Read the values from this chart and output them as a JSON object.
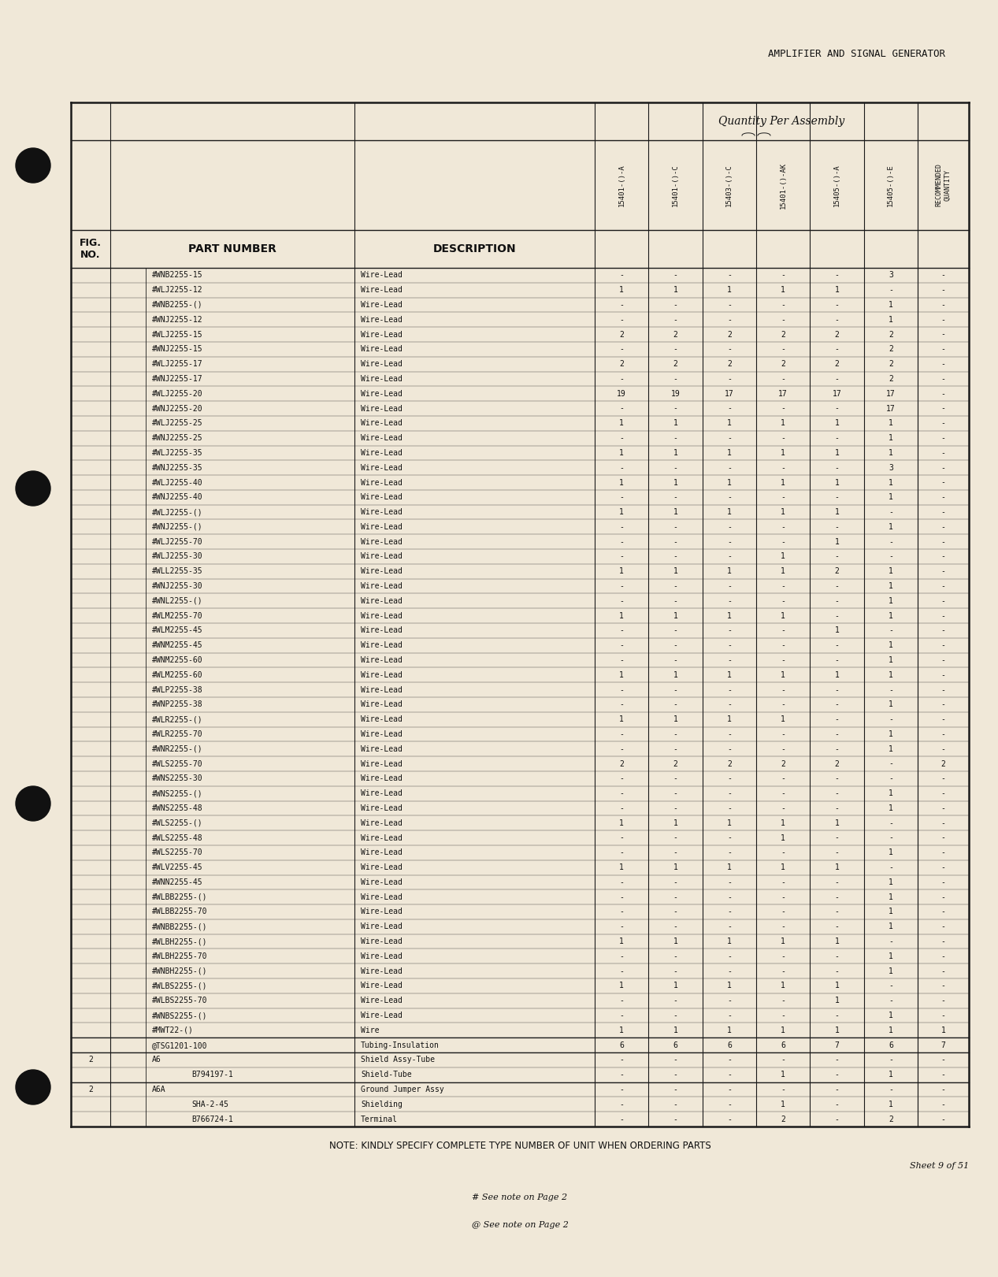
{
  "page_title": "AMPLIFIER AND SIGNAL GENERATOR",
  "qty_header": "Quantity Per Assembly",
  "col_labels": [
    "15401-()-A",
    "15401-()-C",
    "15403-()-C",
    "15401-()-AK",
    "15405-()-A",
    "15405-()-E"
  ],
  "rows": [
    {
      "fig": "",
      "pn": "#WNB2255-15",
      "desc": "Wire-Lead",
      "indent_pn": 0,
      "indent_desc": 0,
      "q": [
        "-",
        "-",
        "-",
        "-",
        "-",
        "3"
      ],
      "rec": "-"
    },
    {
      "fig": "",
      "pn": "#WLJ2255-12",
      "desc": "Wire-Lead",
      "indent_pn": 0,
      "indent_desc": 0,
      "q": [
        "1",
        "1",
        "1",
        "1",
        "1",
        "-"
      ],
      "rec": "-"
    },
    {
      "fig": "",
      "pn": "#WNB2255-()",
      "desc": "Wire-Lead",
      "indent_pn": 0,
      "indent_desc": 0,
      "q": [
        "-",
        "-",
        "-",
        "-",
        "-",
        "1"
      ],
      "rec": "-"
    },
    {
      "fig": "",
      "pn": "#WNJ2255-12",
      "desc": "Wire-Lead",
      "indent_pn": 0,
      "indent_desc": 0,
      "q": [
        "-",
        "-",
        "-",
        "-",
        "-",
        "1"
      ],
      "rec": "-"
    },
    {
      "fig": "",
      "pn": "#WLJ2255-15",
      "desc": "Wire-Lead",
      "indent_pn": 0,
      "indent_desc": 0,
      "q": [
        "2",
        "2",
        "2",
        "2",
        "2",
        "2"
      ],
      "rec": "-"
    },
    {
      "fig": "",
      "pn": "#WNJ2255-15",
      "desc": "Wire-Lead",
      "indent_pn": 0,
      "indent_desc": 0,
      "q": [
        "-",
        "-",
        "-",
        "-",
        "-",
        "2"
      ],
      "rec": "-"
    },
    {
      "fig": "",
      "pn": "#WLJ2255-17",
      "desc": "Wire-Lead",
      "indent_pn": 0,
      "indent_desc": 0,
      "q": [
        "2",
        "2",
        "2",
        "2",
        "2",
        "2"
      ],
      "rec": "-"
    },
    {
      "fig": "",
      "pn": "#WNJ2255-17",
      "desc": "Wire-Lead",
      "indent_pn": 0,
      "indent_desc": 0,
      "q": [
        "-",
        "-",
        "-",
        "-",
        "-",
        "2"
      ],
      "rec": "-"
    },
    {
      "fig": "",
      "pn": "#WLJ2255-20",
      "desc": "Wire-Lead",
      "indent_pn": 0,
      "indent_desc": 0,
      "q": [
        "19",
        "19",
        "17",
        "17",
        "17",
        "17"
      ],
      "rec": "-"
    },
    {
      "fig": "",
      "pn": "#WNJ2255-20",
      "desc": "Wire-Lead",
      "indent_pn": 0,
      "indent_desc": 0,
      "q": [
        "-",
        "-",
        "-",
        "-",
        "-",
        "17"
      ],
      "rec": "-"
    },
    {
      "fig": "",
      "pn": "#WLJ2255-25",
      "desc": "Wire-Lead",
      "indent_pn": 0,
      "indent_desc": 0,
      "q": [
        "1",
        "1",
        "1",
        "1",
        "1",
        "1"
      ],
      "rec": "-"
    },
    {
      "fig": "",
      "pn": "#WNJ2255-25",
      "desc": "Wire-Lead",
      "indent_pn": 0,
      "indent_desc": 0,
      "q": [
        "-",
        "-",
        "-",
        "-",
        "-",
        "1"
      ],
      "rec": "-"
    },
    {
      "fig": "",
      "pn": "#WLJ2255-35",
      "desc": "Wire-Lead",
      "indent_pn": 0,
      "indent_desc": 0,
      "q": [
        "1",
        "1",
        "1",
        "1",
        "1",
        "1"
      ],
      "rec": "-"
    },
    {
      "fig": "",
      "pn": "#WNJ2255-35",
      "desc": "Wire-Lead",
      "indent_pn": 0,
      "indent_desc": 0,
      "q": [
        "-",
        "-",
        "-",
        "-",
        "-",
        "3"
      ],
      "rec": "-"
    },
    {
      "fig": "",
      "pn": "#WLJ2255-40",
      "desc": "Wire-Lead",
      "indent_pn": 0,
      "indent_desc": 0,
      "q": [
        "1",
        "1",
        "1",
        "1",
        "1",
        "1"
      ],
      "rec": "-"
    },
    {
      "fig": "",
      "pn": "#WNJ2255-40",
      "desc": "Wire-Lead",
      "indent_pn": 0,
      "indent_desc": 0,
      "q": [
        "-",
        "-",
        "-",
        "-",
        "-",
        "1"
      ],
      "rec": "-"
    },
    {
      "fig": "",
      "pn": "#WLJ2255-()",
      "desc": "Wire-Lead",
      "indent_pn": 0,
      "indent_desc": 0,
      "q": [
        "1",
        "1",
        "1",
        "1",
        "1",
        "-"
      ],
      "rec": "-"
    },
    {
      "fig": "",
      "pn": "#WNJ2255-()",
      "desc": "Wire-Lead",
      "indent_pn": 0,
      "indent_desc": 0,
      "q": [
        "-",
        "-",
        "-",
        "-",
        "-",
        "1"
      ],
      "rec": "-"
    },
    {
      "fig": "",
      "pn": "#WLJ2255-70",
      "desc": "Wire-Lead",
      "indent_pn": 0,
      "indent_desc": 0,
      "q": [
        "-",
        "-",
        "-",
        "-",
        "1",
        "-"
      ],
      "rec": "-"
    },
    {
      "fig": "",
      "pn": "#WLJ2255-30",
      "desc": "Wire-Lead",
      "indent_pn": 0,
      "indent_desc": 0,
      "q": [
        "-",
        "-",
        "-",
        "1",
        "-",
        "-"
      ],
      "rec": "-"
    },
    {
      "fig": "",
      "pn": "#WLL2255-35",
      "desc": "Wire-Lead",
      "indent_pn": 0,
      "indent_desc": 0,
      "q": [
        "1",
        "1",
        "1",
        "1",
        "2",
        "1"
      ],
      "rec": "-"
    },
    {
      "fig": "",
      "pn": "#WNJ2255-30",
      "desc": "Wire-Lead",
      "indent_pn": 0,
      "indent_desc": 0,
      "q": [
        "-",
        "-",
        "-",
        "-",
        "-",
        "1"
      ],
      "rec": "-"
    },
    {
      "fig": "",
      "pn": "#WNL2255-()",
      "desc": "Wire-Lead",
      "indent_pn": 0,
      "indent_desc": 0,
      "q": [
        "-",
        "-",
        "-",
        "-",
        "-",
        "1"
      ],
      "rec": "-"
    },
    {
      "fig": "",
      "pn": "#WLM2255-70",
      "desc": "Wire-Lead",
      "indent_pn": 0,
      "indent_desc": 0,
      "q": [
        "1",
        "1",
        "1",
        "1",
        "-",
        "1"
      ],
      "rec": "-"
    },
    {
      "fig": "",
      "pn": "#WLM2255-45",
      "desc": "Wire-Lead",
      "indent_pn": 0,
      "indent_desc": 0,
      "q": [
        "-",
        "-",
        "-",
        "-",
        "1",
        "-"
      ],
      "rec": "-"
    },
    {
      "fig": "",
      "pn": "#WNM2255-45",
      "desc": "Wire-Lead",
      "indent_pn": 0,
      "indent_desc": 0,
      "q": [
        "-",
        "-",
        "-",
        "-",
        "-",
        "1"
      ],
      "rec": "-"
    },
    {
      "fig": "",
      "pn": "#WNM2255-60",
      "desc": "Wire-Lead",
      "indent_pn": 0,
      "indent_desc": 0,
      "q": [
        "-",
        "-",
        "-",
        "-",
        "-",
        "1"
      ],
      "rec": "-"
    },
    {
      "fig": "",
      "pn": "#WLM2255-60",
      "desc": "Wire-Lead",
      "indent_pn": 0,
      "indent_desc": 0,
      "q": [
        "1",
        "1",
        "1",
        "1",
        "1",
        "1"
      ],
      "rec": "-"
    },
    {
      "fig": "",
      "pn": "#WLP2255-38",
      "desc": "Wire-Lead",
      "indent_pn": 0,
      "indent_desc": 0,
      "q": [
        "-",
        "-",
        "-",
        "-",
        "-",
        "-"
      ],
      "rec": "-"
    },
    {
      "fig": "",
      "pn": "#WNP2255-38",
      "desc": "Wire-Lead",
      "indent_pn": 0,
      "indent_desc": 0,
      "q": [
        "-",
        "-",
        "-",
        "-",
        "-",
        "1"
      ],
      "rec": "-"
    },
    {
      "fig": "",
      "pn": "#WLR2255-()",
      "desc": "Wire-Lead",
      "indent_pn": 0,
      "indent_desc": 0,
      "q": [
        "1",
        "1",
        "1",
        "1",
        "-",
        "-"
      ],
      "rec": "-"
    },
    {
      "fig": "",
      "pn": "#WLR2255-70",
      "desc": "Wire-Lead",
      "indent_pn": 0,
      "indent_desc": 0,
      "q": [
        "-",
        "-",
        "-",
        "-",
        "-",
        "1"
      ],
      "rec": "-"
    },
    {
      "fig": "",
      "pn": "#WNR2255-()",
      "desc": "Wire-Lead",
      "indent_pn": 0,
      "indent_desc": 0,
      "q": [
        "-",
        "-",
        "-",
        "-",
        "-",
        "1"
      ],
      "rec": "-"
    },
    {
      "fig": "",
      "pn": "#WLS2255-70",
      "desc": "Wire-Lead",
      "indent_pn": 0,
      "indent_desc": 0,
      "q": [
        "2",
        "2",
        "2",
        "2",
        "2",
        "-"
      ],
      "rec": "2"
    },
    {
      "fig": "",
      "pn": "#WNS2255-30",
      "desc": "Wire-Lead",
      "indent_pn": 0,
      "indent_desc": 0,
      "q": [
        "-",
        "-",
        "-",
        "-",
        "-",
        "-"
      ],
      "rec": "-"
    },
    {
      "fig": "",
      "pn": "#WNS2255-()",
      "desc": "Wire-Lead",
      "indent_pn": 0,
      "indent_desc": 0,
      "q": [
        "-",
        "-",
        "-",
        "-",
        "-",
        "1"
      ],
      "rec": "-"
    },
    {
      "fig": "",
      "pn": "#WNS2255-48",
      "desc": "Wire-Lead",
      "indent_pn": 0,
      "indent_desc": 0,
      "q": [
        "-",
        "-",
        "-",
        "-",
        "-",
        "1"
      ],
      "rec": "-"
    },
    {
      "fig": "",
      "pn": "#WLS2255-()",
      "desc": "Wire-Lead",
      "indent_pn": 0,
      "indent_desc": 0,
      "q": [
        "1",
        "1",
        "1",
        "1",
        "1",
        "-"
      ],
      "rec": "-"
    },
    {
      "fig": "",
      "pn": "#WLS2255-48",
      "desc": "Wire-Lead",
      "indent_pn": 0,
      "indent_desc": 0,
      "q": [
        "-",
        "-",
        "-",
        "1",
        "-",
        "-"
      ],
      "rec": "-"
    },
    {
      "fig": "",
      "pn": "#WLS2255-70",
      "desc": "Wire-Lead",
      "indent_pn": 0,
      "indent_desc": 0,
      "q": [
        "-",
        "-",
        "-",
        "-",
        "-",
        "1"
      ],
      "rec": "-"
    },
    {
      "fig": "",
      "pn": "#WLV2255-45",
      "desc": "Wire-Lead",
      "indent_pn": 0,
      "indent_desc": 0,
      "q": [
        "1",
        "1",
        "1",
        "1",
        "1",
        "-"
      ],
      "rec": "-"
    },
    {
      "fig": "",
      "pn": "#WNN2255-45",
      "desc": "Wire-Lead",
      "indent_pn": 0,
      "indent_desc": 0,
      "q": [
        "-",
        "-",
        "-",
        "-",
        "-",
        "1"
      ],
      "rec": "-"
    },
    {
      "fig": "",
      "pn": "#WLBB2255-()",
      "desc": "Wire-Lead",
      "indent_pn": 0,
      "indent_desc": 0,
      "q": [
        "-",
        "-",
        "-",
        "-",
        "-",
        "1"
      ],
      "rec": "-"
    },
    {
      "fig": "",
      "pn": "#WLBB2255-70",
      "desc": "Wire-Lead",
      "indent_pn": 0,
      "indent_desc": 0,
      "q": [
        "-",
        "-",
        "-",
        "-",
        "-",
        "1"
      ],
      "rec": "-"
    },
    {
      "fig": "",
      "pn": "#WNBB2255-()",
      "desc": "Wire-Lead",
      "indent_pn": 0,
      "indent_desc": 0,
      "q": [
        "-",
        "-",
        "-",
        "-",
        "-",
        "1"
      ],
      "rec": "-"
    },
    {
      "fig": "",
      "pn": "#WLBH2255-()",
      "desc": "Wire-Lead",
      "indent_pn": 0,
      "indent_desc": 0,
      "q": [
        "1",
        "1",
        "1",
        "1",
        "1",
        "-"
      ],
      "rec": "-"
    },
    {
      "fig": "",
      "pn": "#WLBH2255-70",
      "desc": "Wire-Lead",
      "indent_pn": 0,
      "indent_desc": 0,
      "q": [
        "-",
        "-",
        "-",
        "-",
        "-",
        "1"
      ],
      "rec": "-"
    },
    {
      "fig": "",
      "pn": "#WNBH2255-()",
      "desc": "Wire-Lead",
      "indent_pn": 0,
      "indent_desc": 0,
      "q": [
        "-",
        "-",
        "-",
        "-",
        "-",
        "1"
      ],
      "rec": "-"
    },
    {
      "fig": "",
      "pn": "#WLBS2255-()",
      "desc": "Wire-Lead",
      "indent_pn": 0,
      "indent_desc": 0,
      "q": [
        "1",
        "1",
        "1",
        "1",
        "1",
        "-"
      ],
      "rec": "-"
    },
    {
      "fig": "",
      "pn": "#WLBS2255-70",
      "desc": "Wire-Lead",
      "indent_pn": 0,
      "indent_desc": 0,
      "q": [
        "-",
        "-",
        "-",
        "-",
        "1",
        "-"
      ],
      "rec": "-"
    },
    {
      "fig": "",
      "pn": "#WNBS2255-()",
      "desc": "Wire-Lead",
      "indent_pn": 0,
      "indent_desc": 0,
      "q": [
        "-",
        "-",
        "-",
        "-",
        "-",
        "1"
      ],
      "rec": "-"
    },
    {
      "fig": "",
      "pn": "#MWT22-()",
      "desc": "Wire",
      "indent_pn": 0,
      "indent_desc": 0,
      "q": [
        "1",
        "1",
        "1",
        "1",
        "1",
        "1"
      ],
      "rec": "1"
    },
    {
      "fig": "",
      "pn": "@TSG1201-100",
      "desc": "Tubing-Insulation",
      "indent_pn": 0,
      "indent_desc": 0,
      "q": [
        "6",
        "6",
        "6",
        "6",
        "7",
        "6"
      ],
      "rec": "7"
    },
    {
      "fig": "2",
      "pn": "A6",
      "desc": "Shield Assy-Tube",
      "indent_pn": 0,
      "indent_desc": 0,
      "q": [
        "-",
        "-",
        "-",
        "-",
        "-",
        "-"
      ],
      "rec": "-"
    },
    {
      "fig": "",
      "pn": "B794197-1",
      "desc": "Shield-Tube",
      "indent_pn": 1,
      "indent_desc": 0,
      "q": [
        "-",
        "-",
        "-",
        "1",
        "-",
        "1"
      ],
      "rec": "-"
    },
    {
      "fig": "2",
      "pn": "A6A",
      "desc": "Ground Jumper Assy",
      "indent_pn": 0,
      "indent_desc": 0,
      "q": [
        "-",
        "-",
        "-",
        "-",
        "-",
        "-"
      ],
      "rec": "-"
    },
    {
      "fig": "",
      "pn": "SHA-2-45",
      "desc": "Shielding",
      "indent_pn": 1,
      "indent_desc": 0,
      "q": [
        "-",
        "-",
        "-",
        "1",
        "-",
        "1"
      ],
      "rec": "-"
    },
    {
      "fig": "",
      "pn": "B766724-1",
      "desc": "Terminal",
      "indent_pn": 1,
      "indent_desc": 0,
      "q": [
        "-",
        "-",
        "-",
        "2",
        "-",
        "2"
      ],
      "rec": "-"
    }
  ],
  "footer_note": "NOTE: KINDLY SPECIFY COMPLETE TYPE NUMBER OF UNIT WHEN ORDERING PARTS",
  "sheet_info": "Sheet 9 of 51",
  "footnote1": "# See note on Page 2",
  "footnote2": "@ See note on Page 2",
  "bg_color": "#f0e8d8",
  "line_color": "#1a1a1a",
  "text_color": "#111111"
}
